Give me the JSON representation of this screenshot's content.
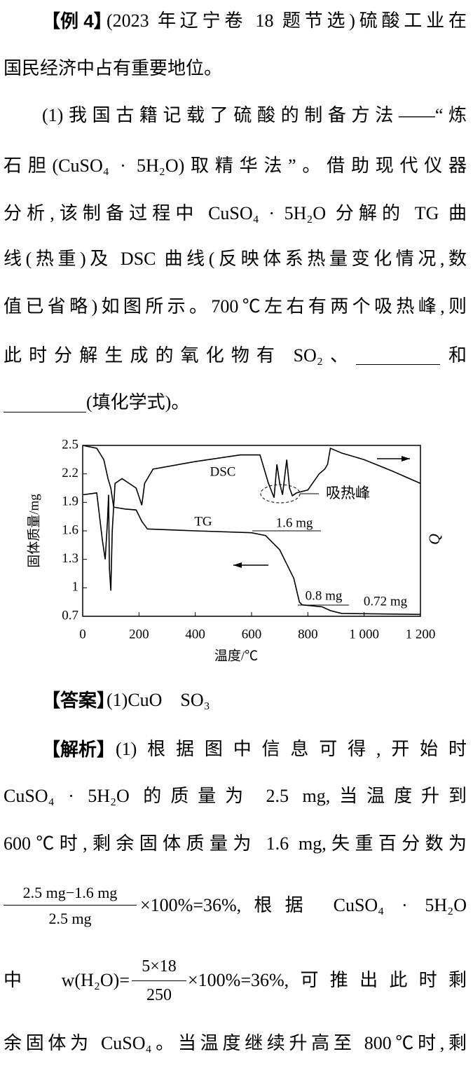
{
  "example": {
    "label": "【例 4】",
    "text": "(2023 年辽宁卷 18 题节选)硫酸工业在"
  },
  "question_lines": [
    "国民经济中占有重要地位。",
    "(1)我国古籍记载了硫酸的制备方法——“炼",
    "石胆(CuSO₄ · 5H₂O)取精华法”。借助现代仪器",
    "分析,该制备过程中 CuSO₄ · 5H₂O 分解的 TG 曲",
    "线(热重)及 DSC 曲线(反映体系热量变化情况,数",
    "值已省略)如图所示。700℃左右有两个吸热峰,则"
  ],
  "blank_line": {
    "before": "此时分解生成的氧化物有 SO₂、",
    "after": "和"
  },
  "last_question_line": "(填化学式)。",
  "chart_data": {
    "type": "line",
    "xlabel": "温度/℃",
    "ylabel": "固体质量/mg",
    "y2label": "Q",
    "xlim": [
      0,
      1200
    ],
    "xticks": [
      0,
      200,
      400,
      600,
      800,
      {
        "value": 1000,
        "label": "1 000"
      },
      {
        "value": 1200,
        "label": "1 200"
      }
    ],
    "ylim": [
      0.7,
      2.5
    ],
    "yticks": [
      2.5,
      2.2,
      1.9,
      1.6,
      1.3,
      1.0,
      0.7
    ],
    "grid": false,
    "annotations": [
      "DSC",
      "TG",
      "1.6 mg",
      "0.8 mg",
      "0.72 mg",
      "吸热峰"
    ],
    "series": [
      {
        "name": "TG",
        "color": "#000000",
        "x": [
          0,
          50,
          75,
          90,
          100,
          110,
          150,
          190,
          210,
          230,
          400,
          600,
          650,
          700,
          750,
          770,
          780,
          850,
          880,
          920,
          1200
        ],
        "values": [
          2.5,
          2.47,
          2.35,
          2.15,
          2.05,
          1.85,
          1.83,
          1.82,
          1.7,
          1.62,
          1.6,
          1.58,
          1.55,
          1.4,
          1.1,
          0.85,
          0.82,
          0.8,
          0.76,
          0.73,
          0.72
        ]
      },
      {
        "name": "DSC",
        "color": "#000000",
        "x": [
          0,
          50,
          70,
          80,
          88,
          92,
          95,
          100,
          105,
          115,
          140,
          190,
          210,
          220,
          250,
          400,
          560,
          630,
          660,
          680,
          690,
          700,
          710,
          725,
          735,
          745,
          760,
          800,
          840,
          860,
          870,
          880,
          920,
          1000,
          1100,
          1200
        ],
        "values": [
          1.98,
          2.0,
          1.5,
          1.3,
          1.7,
          1.98,
          1.2,
          0.97,
          1.6,
          2.1,
          2.15,
          2.05,
          1.87,
          2.1,
          2.25,
          2.33,
          2.4,
          2.4,
          2.1,
          1.95,
          2.3,
          2.1,
          1.98,
          2.35,
          2.05,
          1.97,
          2.0,
          2.03,
          2.2,
          2.25,
          2.3,
          2.47,
          2.42,
          2.35,
          2.23,
          2.1
        ]
      }
    ]
  },
  "answer": {
    "label": "【答案】",
    "text": "(1)CuO　SO₃"
  },
  "analysis": {
    "label": "【解析】",
    "text": "(1)根据图中信息可得,开始时",
    "lines": [
      "CuSO₄ · 5H₂O 的质量为 2.5 mg,当温度升到",
      "600℃时,剩余固体质量为 1.6 mg,失重百分数为"
    ],
    "fraction_line": {
      "numerator": "2.5 mg−1.6 mg",
      "denominator": "2.5 mg",
      "after": "×100%=36%,根据 CuSO₄ · 5H₂O"
    },
    "w_line": {
      "before": "中 w(H₂O)=",
      "numerator": "5×18",
      "denominator": "250",
      "after": "×100%=36%,可推出此时剩"
    },
    "last_line": "余固体为 CuSO₄。当温度继续升高至 800℃时,剩"
  }
}
